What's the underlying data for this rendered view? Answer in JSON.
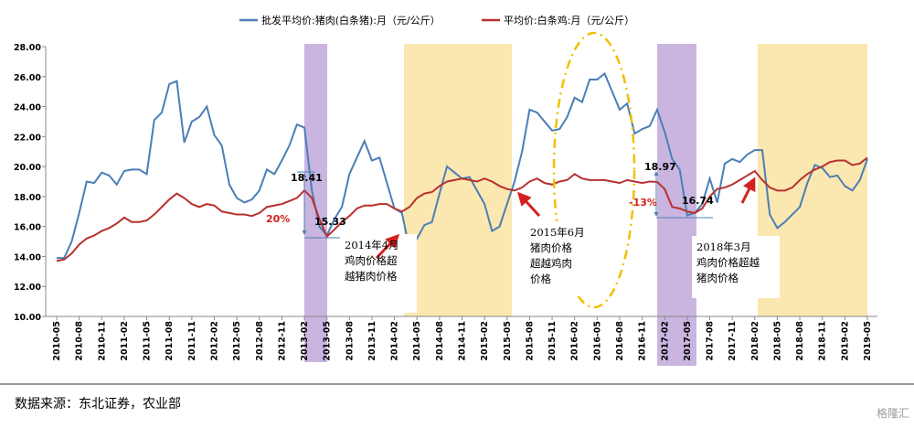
{
  "chart_data": {
    "type": "line",
    "categories": [
      "2010-05",
      null,
      null,
      "2010-08",
      null,
      null,
      "2010-11",
      null,
      null,
      "2011-02",
      null,
      null,
      "2011-05",
      null,
      null,
      "2011-08",
      null,
      null,
      "2011-11",
      null,
      null,
      "2012-02",
      null,
      null,
      "2012-05",
      null,
      null,
      "2012-08",
      null,
      null,
      "2012-11",
      null,
      null,
      "2013-02",
      null,
      null,
      "2013-05",
      null,
      null,
      "2013-08",
      null,
      null,
      "2013-11",
      null,
      null,
      "2014-02",
      null,
      null,
      "2014-05",
      null,
      null,
      "2014-08",
      null,
      null,
      "2014-11",
      null,
      null,
      "2015-02",
      null,
      null,
      "2015-05",
      null,
      null,
      "2015-08",
      null,
      null,
      "2015-11",
      null,
      null,
      "2016-02",
      null,
      null,
      "2016-05",
      null,
      null,
      "2016-08",
      null,
      null,
      "2016-11",
      null,
      null,
      "2017-02",
      null,
      null,
      "2017-05",
      null,
      null,
      "2017-08",
      null,
      null,
      "2017-11",
      null,
      null,
      "2018-02",
      null,
      null,
      "2018-05",
      null,
      null,
      "2018-08",
      null,
      null,
      "2018-11",
      null,
      null,
      "2019-02",
      null,
      null,
      "2019-05"
    ],
    "series": [
      {
        "name": "批发平均价:猪肉(白条猪):月（元/公斤）",
        "color": "#4a7fb5",
        "values": [
          13.9,
          13.9,
          15.0,
          16.9,
          19.0,
          18.9,
          19.6,
          19.4,
          18.8,
          19.7,
          19.8,
          19.8,
          19.5,
          23.1,
          23.6,
          25.5,
          25.7,
          21.6,
          23.0,
          23.3,
          24.0,
          22.1,
          21.4,
          18.8,
          17.9,
          17.6,
          17.8,
          18.4,
          19.8,
          19.5,
          20.4,
          21.4,
          22.8,
          22.6,
          18.4,
          16.0,
          15.4,
          16.5,
          17.3,
          19.5,
          20.6,
          21.7,
          20.4,
          20.6,
          18.9,
          17.2,
          16.9,
          14.5,
          15.2,
          16.1,
          16.3,
          18.2,
          20.0,
          19.6,
          19.2,
          19.3,
          18.4,
          17.5,
          15.7,
          16.0,
          17.5,
          19.0,
          21.0,
          23.8,
          23.6,
          23.0,
          22.4,
          22.5,
          23.3,
          24.6,
          24.3,
          25.8,
          25.8,
          26.2,
          25.0,
          23.8,
          24.2,
          22.2,
          22.5,
          22.7,
          23.8,
          22.3,
          20.5,
          19.8,
          16.74,
          16.9,
          17.5,
          19.2,
          17.6,
          20.2,
          20.5,
          20.3,
          20.8,
          21.1,
          21.1,
          16.8,
          15.9,
          16.3,
          16.8,
          17.3,
          18.9,
          20.1,
          19.9,
          19.3,
          19.4,
          18.7,
          18.4,
          19.1,
          20.5
        ]
      },
      {
        "name": "平均价:白条鸡:月（元/公斤）",
        "color": "#b8312f",
        "values": [
          13.7,
          13.8,
          14.2,
          14.8,
          15.2,
          15.4,
          15.7,
          15.9,
          16.2,
          16.6,
          16.3,
          16.3,
          16.4,
          16.8,
          17.3,
          17.8,
          18.2,
          17.9,
          17.5,
          17.3,
          17.5,
          17.4,
          17.0,
          16.9,
          16.8,
          16.8,
          16.7,
          16.9,
          17.3,
          17.4,
          17.5,
          17.7,
          17.9,
          18.41,
          17.9,
          16.5,
          15.33,
          15.8,
          16.3,
          16.7,
          17.2,
          17.4,
          17.4,
          17.5,
          17.5,
          17.2,
          17.0,
          17.3,
          17.9,
          18.2,
          18.3,
          18.7,
          19.0,
          19.1,
          19.2,
          19.1,
          19.0,
          19.2,
          19.0,
          18.7,
          18.5,
          18.4,
          18.6,
          19.0,
          19.2,
          18.9,
          18.8,
          19.0,
          19.1,
          19.5,
          19.2,
          19.1,
          19.1,
          19.1,
          19.0,
          18.9,
          19.1,
          19.0,
          18.9,
          19.0,
          18.97,
          18.5,
          17.3,
          17.2,
          17.0,
          16.9,
          17.2,
          18.0,
          18.5,
          18.6,
          18.8,
          19.1,
          19.4,
          19.7,
          19.1,
          18.6,
          18.4,
          18.4,
          18.6,
          19.1,
          19.5,
          19.8,
          20.0,
          20.3,
          20.4,
          20.4,
          20.1,
          20.2,
          20.6
        ]
      }
    ],
    "ylim": [
      10,
      28
    ],
    "yticks": [
      {
        "value": 10,
        "label": "10.00"
      },
      {
        "value": 12,
        "label": "12.00"
      },
      {
        "value": 14,
        "label": "14.00"
      },
      {
        "value": 16,
        "label": "16.00"
      },
      {
        "value": 18,
        "label": "18.00"
      },
      {
        "value": 20,
        "label": "20.00"
      },
      {
        "value": 22,
        "label": "22.00"
      },
      {
        "value": 24,
        "label": "24.00"
      },
      {
        "value": 26,
        "label": "26.00"
      },
      {
        "value": 28,
        "label": "28.00"
      }
    ],
    "annotations": [
      "18.41",
      "15.33",
      "20%",
      "18.97",
      "16.74",
      "-13%"
    ],
    "notes": [
      [
        "2014年4月",
        "鸡肉价格超",
        "越猪肉价格"
      ],
      [
        "2015年6月",
        "猪肉价格",
        "超越鸡肉",
        "价格"
      ],
      [
        "2018年3月",
        "鸡肉价格超越",
        "猪肉价格"
      ]
    ],
    "source": "数据来源：东北证券，农业部",
    "watermark": "格隆汇"
  }
}
